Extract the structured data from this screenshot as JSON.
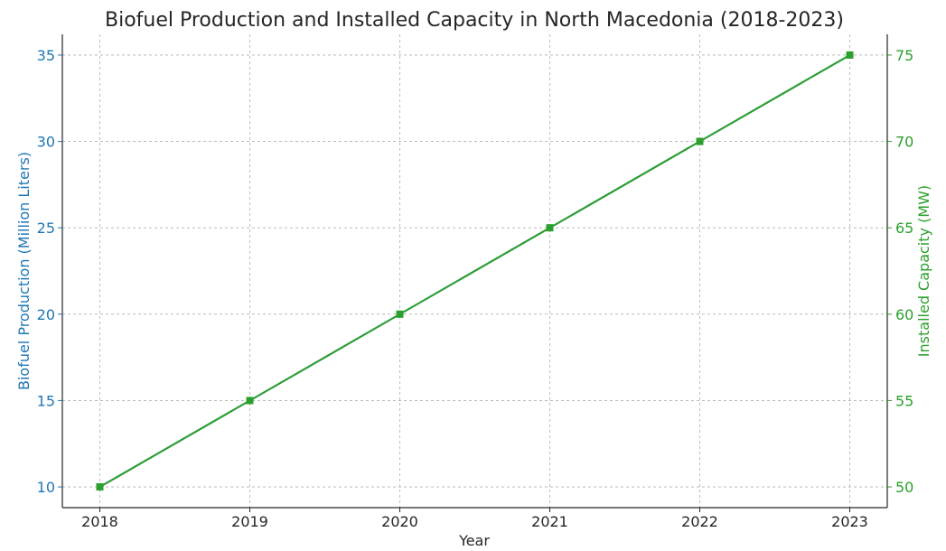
{
  "chart_data": {
    "type": "line",
    "title": "Biofuel Production and Installed Capacity in North Macedonia (2018-2023)",
    "xlabel": "Year",
    "ylabel_left": "Biofuel Production (Million Liters)",
    "ylabel_right": "Installed Capacity (MW)",
    "x": [
      2018,
      2019,
      2020,
      2021,
      2022,
      2023
    ],
    "x_tick_labels": [
      "2018",
      "2019",
      "2020",
      "2021",
      "2022",
      "2023"
    ],
    "ylim_left": [
      8.8,
      36.2
    ],
    "ylim_right": [
      48.8,
      76.2
    ],
    "y_ticks_left": [
      10,
      15,
      20,
      25,
      30,
      35
    ],
    "y_ticks_right": [
      50,
      55,
      60,
      65,
      70,
      75
    ],
    "grid": true,
    "series": [
      {
        "axis": "left",
        "color": "#1f77b4",
        "marker": "circle",
        "values": [
          10,
          15,
          20,
          25,
          30,
          35
        ]
      },
      {
        "axis": "right",
        "color": "#2ca02c",
        "marker": "square",
        "values": [
          50,
          55,
          60,
          65,
          70,
          75
        ]
      }
    ],
    "colors": {
      "left_axis": "#1f77b4",
      "right_axis": "#2ca02c",
      "text": "#262626",
      "grid": "#b0b0b0"
    }
  }
}
